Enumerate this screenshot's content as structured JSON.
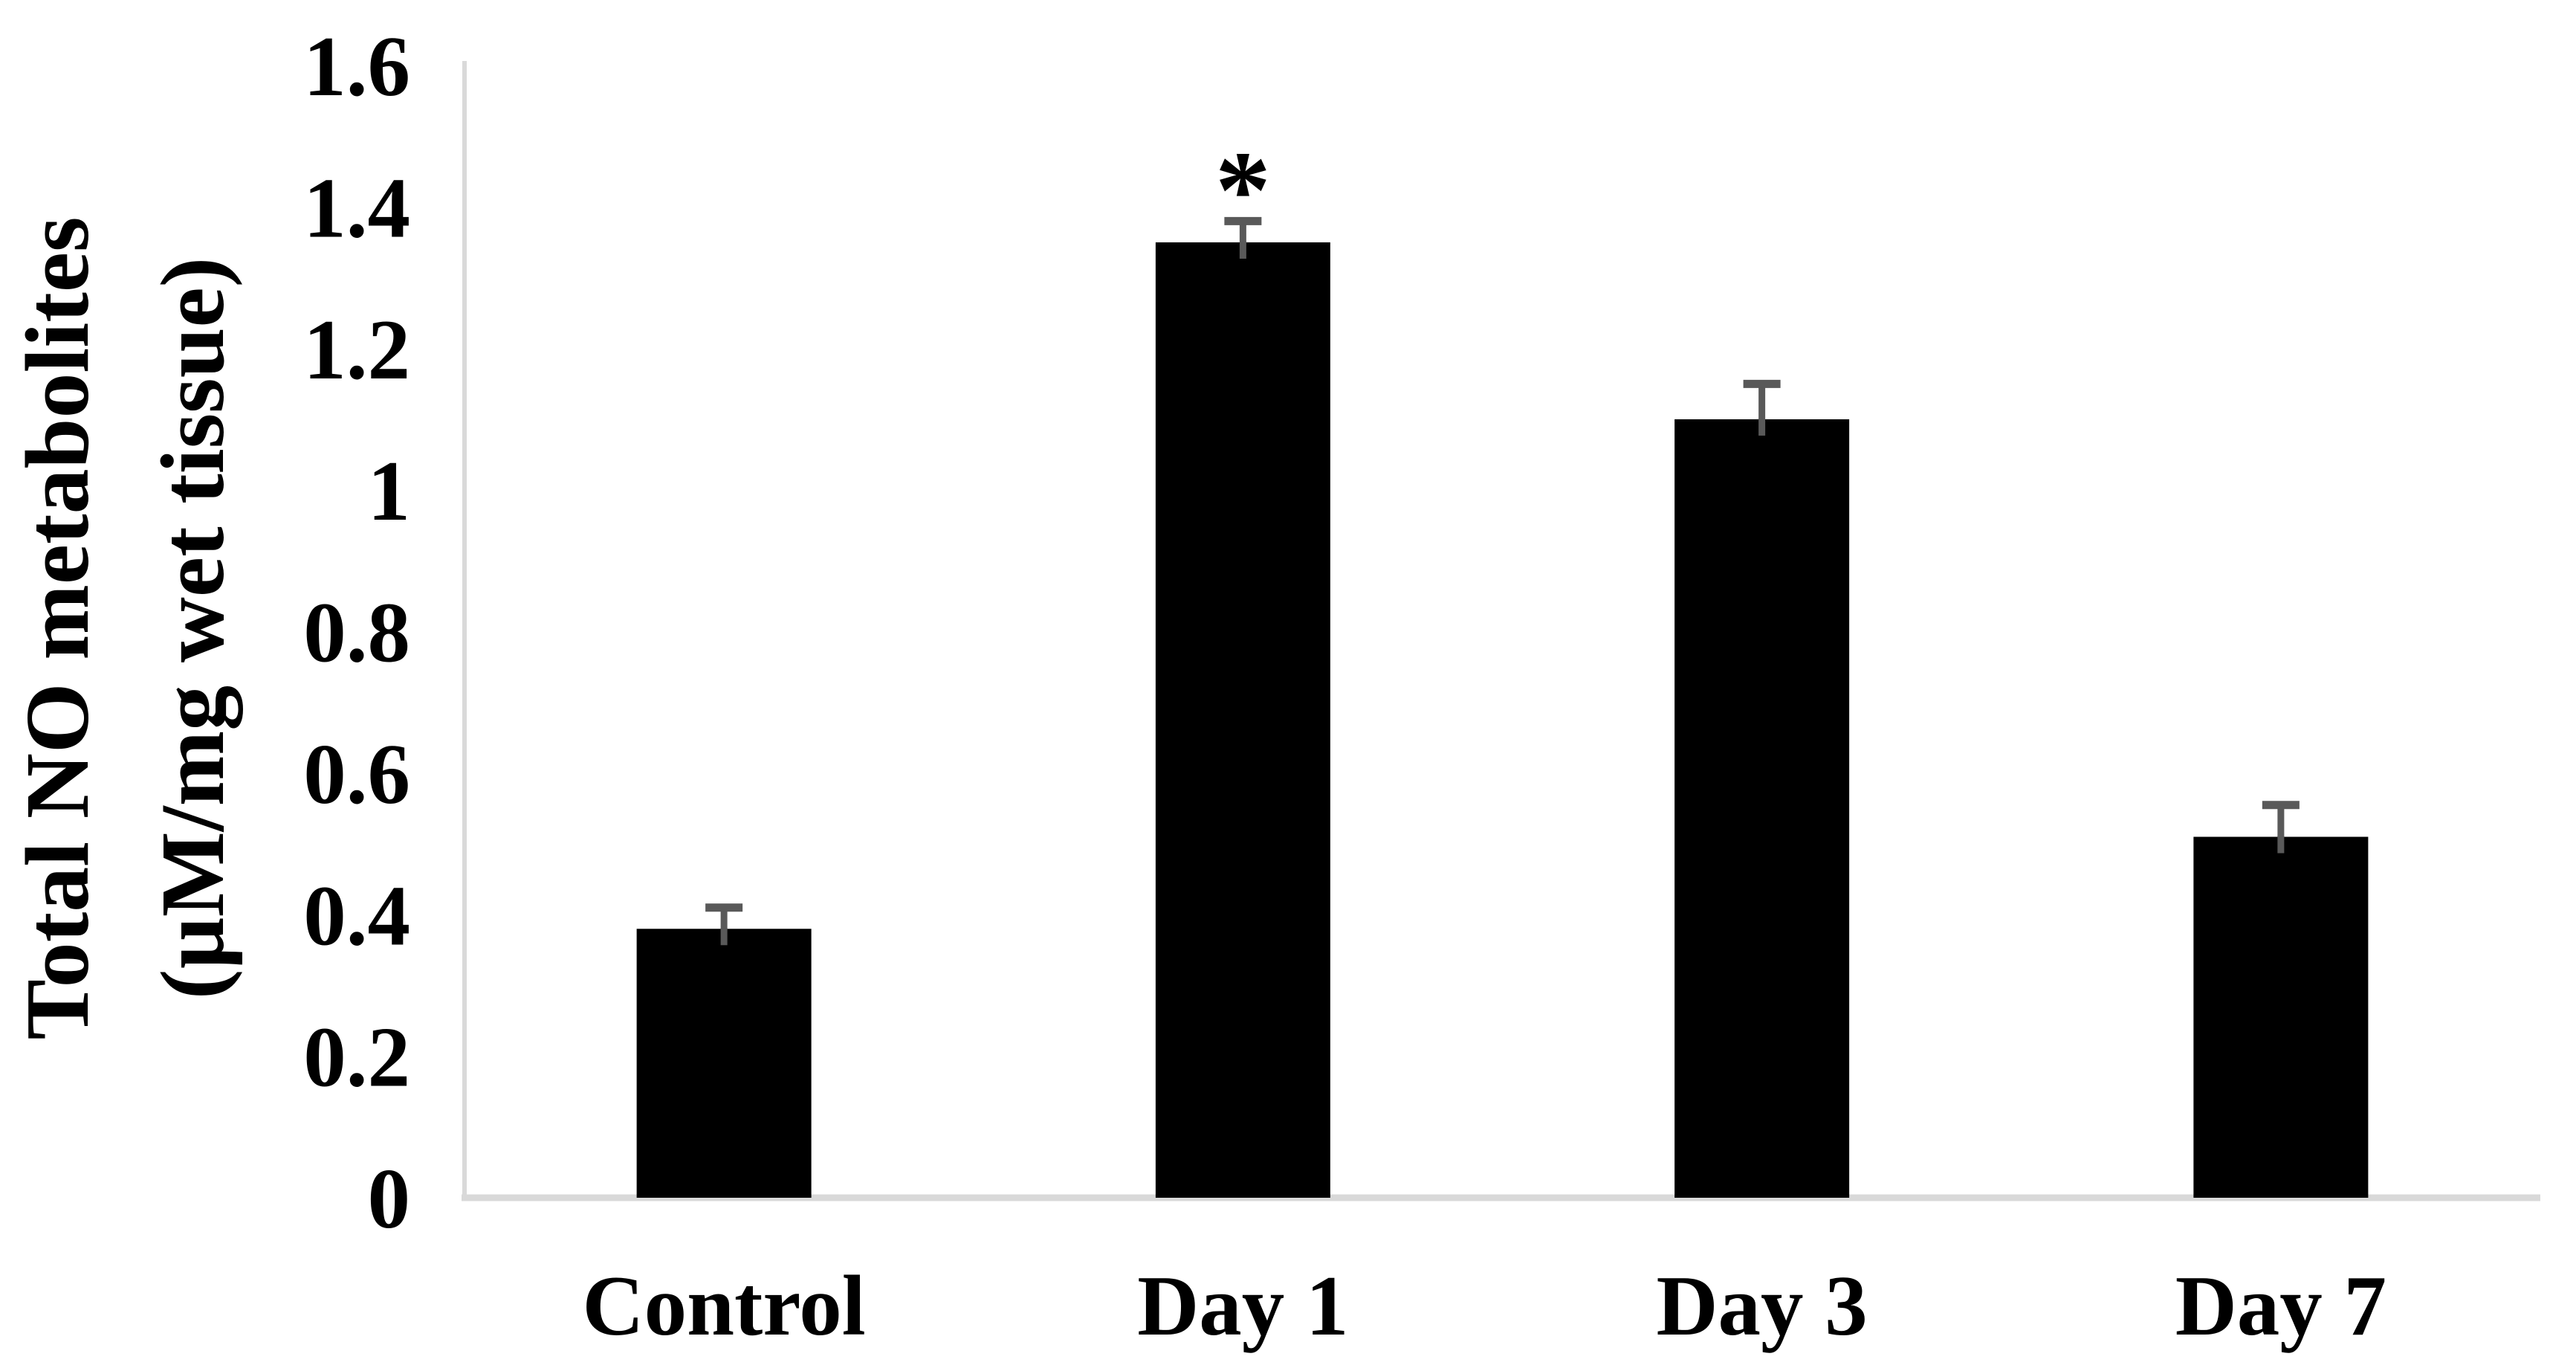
{
  "figure": {
    "background": "#ffffff"
  },
  "chart_data": {
    "type": "bar",
    "title": "",
    "categories": [
      "Control",
      "Day 1",
      "Day 3",
      "Day 7"
    ],
    "values": [
      0.38,
      1.35,
      1.1,
      0.51
    ],
    "errors_up": [
      0.03,
      0.03,
      0.05,
      0.045
    ],
    "significance": [
      {
        "category_index": 1,
        "symbol": "*"
      }
    ],
    "ylabel_line1": "Total NO metabolites",
    "ylabel_line2": "(µM/mg wet tissue)",
    "xlabel": "",
    "ylim": [
      0,
      1.6
    ],
    "ytick_labels": [
      "0",
      "0.2",
      "0.4",
      "0.6",
      "0.8",
      "1",
      "1.2",
      "1.4",
      "1.6"
    ],
    "grid": "off",
    "legend": "none",
    "bar_color": "#000000",
    "error_bar_color": "#595959",
    "axis_line_color": "#d9d9d9",
    "text_color": "#000000"
  }
}
